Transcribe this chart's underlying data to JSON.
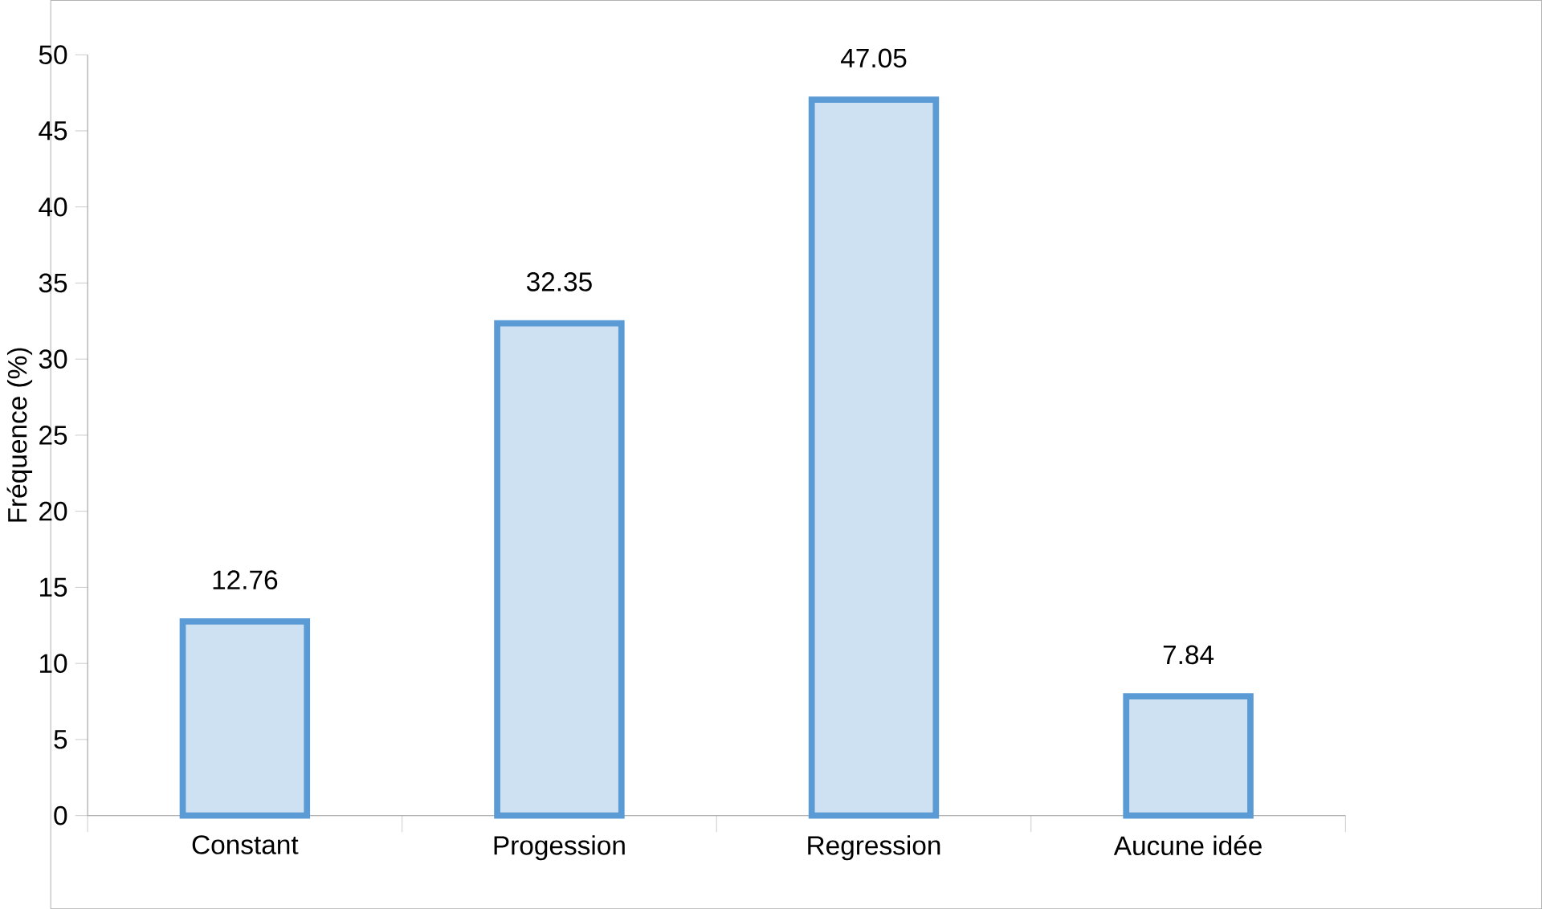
{
  "chart_data": {
    "type": "bar",
    "ylabel": "Fréquence (%)",
    "categories": [
      "Constant",
      "Progession",
      "Regression",
      "Aucune idée"
    ],
    "values": [
      12.76,
      32.35,
      47.05,
      7.84
    ],
    "color": "#5b9bd5",
    "ylim": [
      0,
      50
    ],
    "yticks": [
      0,
      5,
      10,
      15,
      20,
      25,
      30,
      35,
      40,
      45,
      50
    ],
    "data_labels": true,
    "grid": false
  }
}
